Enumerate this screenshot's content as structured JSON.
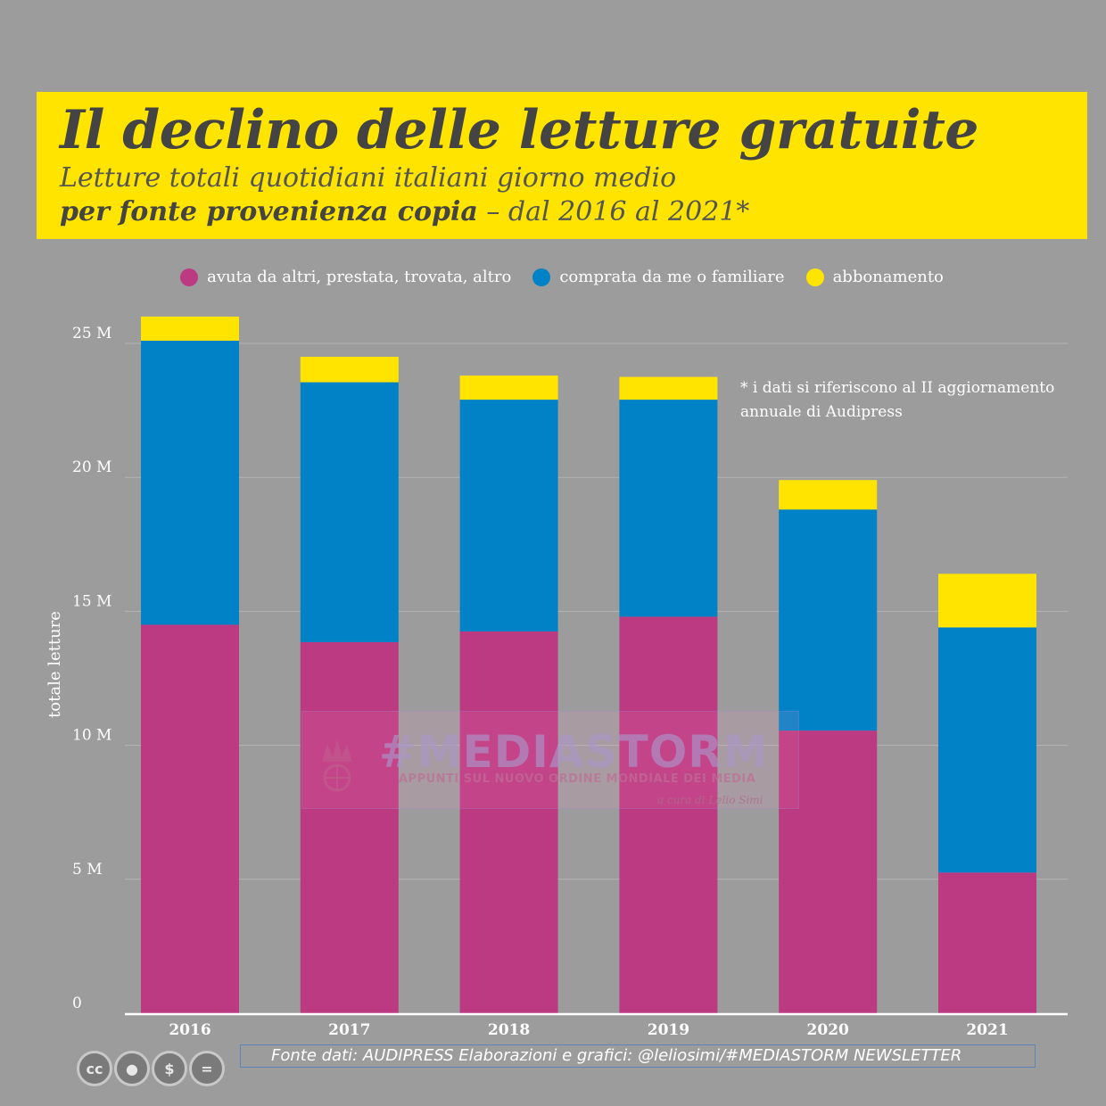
{
  "header": {
    "title": "Il declino delle letture gratuite",
    "subtitle_line1": "Letture totali quotidiani italiani giorno medio",
    "subtitle_bold": "per fonte provenienza copia",
    "subtitle_rest": " – dal 2016 al 2021*"
  },
  "note": "* i dati si riferiscono al II aggiornamento annuale di Audipress",
  "source": "Fonte dati: AUDIPRESS  Elaborazioni e grafici: @leliosimi/#MEDIASTORM NEWSLETTER",
  "watermark": {
    "main": "#MEDIASTORM",
    "sub": "APPUNTI SUL NUOVO ORDINE MONDIALE DEI MEDIA",
    "credit": "a cura di Lelio Simi"
  },
  "license_icons": [
    "cc-icon",
    "by-icon",
    "nc-icon",
    "nd-icon"
  ],
  "colors": {
    "background": "#9c9c9c",
    "title_box": "#ffe400",
    "altri": "#bc3a82",
    "comprata": "#0282c6",
    "abbonamento": "#ffe400"
  },
  "chart_data": {
    "type": "bar",
    "stacked": true,
    "categories": [
      "2016",
      "2017",
      "2018",
      "2019",
      "2020",
      "2021"
    ],
    "series": [
      {
        "name": "avuta da altri, prestata, trovata, altro",
        "color": "#bc3a82",
        "values": [
          14.5,
          13.85,
          14.25,
          14.8,
          10.55,
          5.25
        ]
      },
      {
        "name": "comprata da me o familiare",
        "color": "#0282c6",
        "values": [
          10.6,
          9.7,
          8.65,
          8.1,
          8.25,
          9.15
        ]
      },
      {
        "name": "abbonamento",
        "color": "#ffe400",
        "values": [
          0.9,
          0.95,
          0.9,
          0.85,
          1.1,
          2.0
        ]
      }
    ],
    "ylabel": "totale letture",
    "xlabel": "",
    "ylim": [
      0,
      25
    ],
    "yticks": [
      0,
      5,
      10,
      15,
      20,
      25
    ],
    "ytick_labels": [
      "0",
      "5 M",
      "10 M",
      "15 M",
      "20 M",
      "25 M"
    ],
    "grid": true,
    "legend": "top-center"
  }
}
